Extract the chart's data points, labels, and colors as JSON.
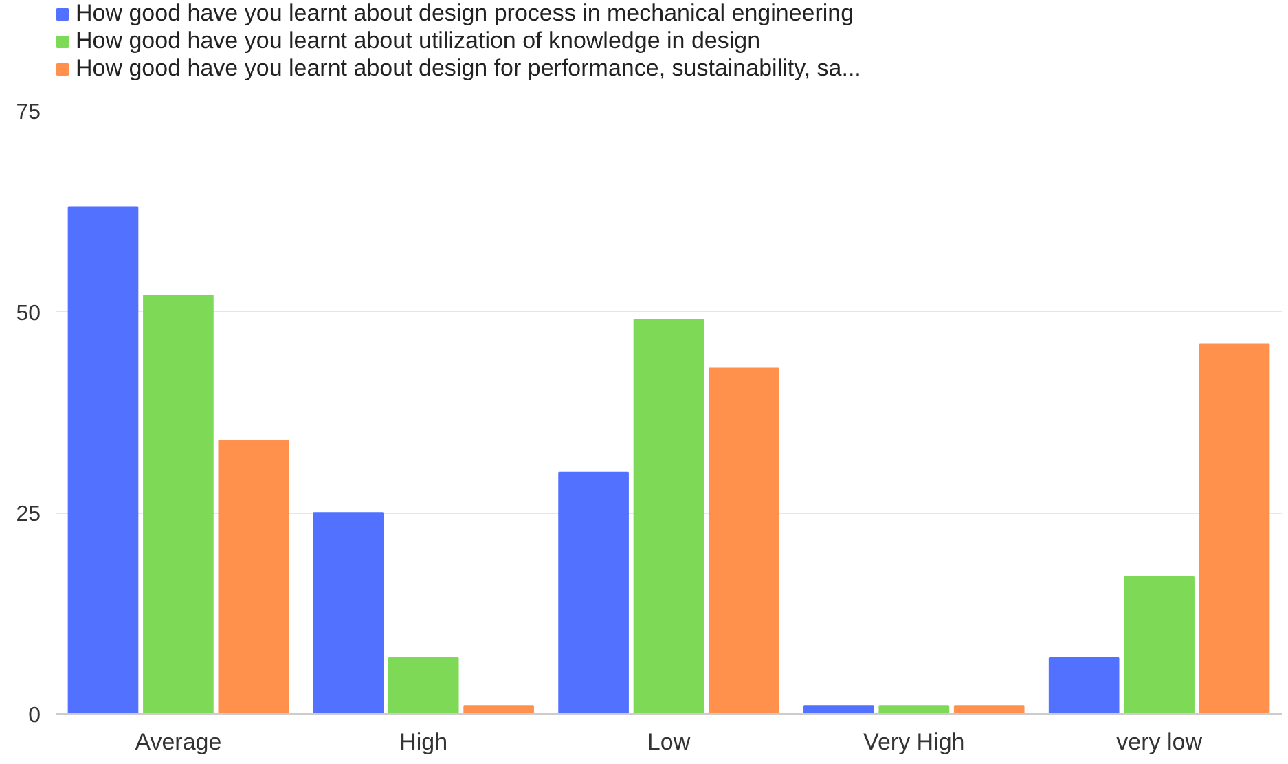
{
  "chart_data": {
    "type": "bar",
    "categories": [
      "Average",
      "High",
      "Low",
      "Very High",
      "very low"
    ],
    "series": [
      {
        "name": "How good have you learnt about design process in mechanical engineering",
        "color": "#5271ff",
        "values": [
          63,
          25,
          30,
          1,
          7
        ]
      },
      {
        "name": "How good have you learnt about utilization of knowledge in design",
        "color": "#7ed957",
        "values": [
          52,
          7,
          49,
          1,
          17
        ]
      },
      {
        "name": "How good have you learnt about design for performance, sustainability, sa...",
        "color": "#ff914d",
        "values": [
          34,
          1,
          43,
          1,
          46
        ]
      }
    ],
    "ylim": [
      0,
      75
    ],
    "yticks": [
      0,
      25,
      50,
      75
    ],
    "grid": "y",
    "legend": "top left"
  }
}
